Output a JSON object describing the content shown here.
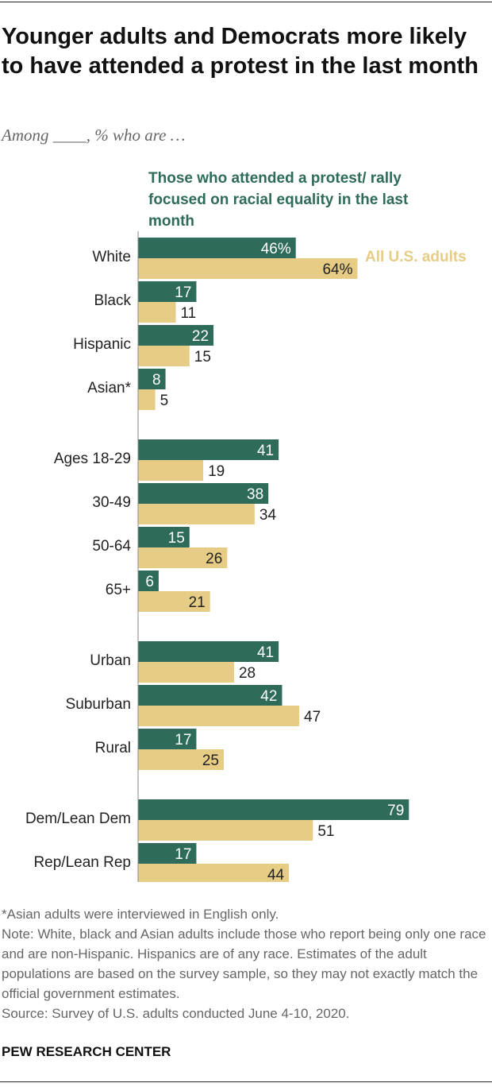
{
  "title": "Younger adults and Democrats more likely to have attended a protest in the last month",
  "subtitle": "Among ____, % who are …",
  "legend": {
    "protest": "Those who attended a protest/ rally focused on racial equality in the last month",
    "all": "All U.S. adults"
  },
  "colors": {
    "protest": "#2f6b5a",
    "all": "#e6cc85",
    "axis": "#888888"
  },
  "chart_data": {
    "type": "bar",
    "orientation": "horizontal",
    "title": "Younger adults and Democrats more likely to have attended a protest in the last month",
    "xlim": [
      0,
      100
    ],
    "percent_label_first_row": true,
    "groups": [
      [
        "White",
        "Black",
        "Hispanic",
        "Asian*"
      ],
      [
        "Ages 18-29",
        "30-49",
        "50-64",
        "65+"
      ],
      [
        "Urban",
        "Suburban",
        "Rural"
      ],
      [
        "Dem/Lean Dem",
        "Rep/Lean Rep"
      ]
    ],
    "categories": [
      "White",
      "Black",
      "Hispanic",
      "Asian*",
      "Ages 18-29",
      "30-49",
      "50-64",
      "65+",
      "Urban",
      "Suburban",
      "Rural",
      "Dem/Lean Dem",
      "Rep/Lean Rep"
    ],
    "series": [
      {
        "name": "Those who attended a protest/ rally focused on racial equality in the last month",
        "values": [
          46,
          17,
          22,
          8,
          41,
          38,
          15,
          6,
          41,
          42,
          17,
          79,
          17
        ]
      },
      {
        "name": "All U.S. adults",
        "values": [
          64,
          11,
          15,
          5,
          19,
          34,
          26,
          21,
          28,
          47,
          25,
          51,
          44
        ]
      }
    ]
  },
  "notes": [
    "*Asian adults were interviewed in English only.",
    "Note: White, black and Asian adults include those who report being only one race and are non-Hispanic. Hispanics are of any race. Estimates of the adult populations are based on the survey sample, so they may not exactly match the official government estimates.",
    "Source: Survey of U.S. adults conducted June 4-10, 2020."
  ],
  "brand": "PEW RESEARCH CENTER"
}
